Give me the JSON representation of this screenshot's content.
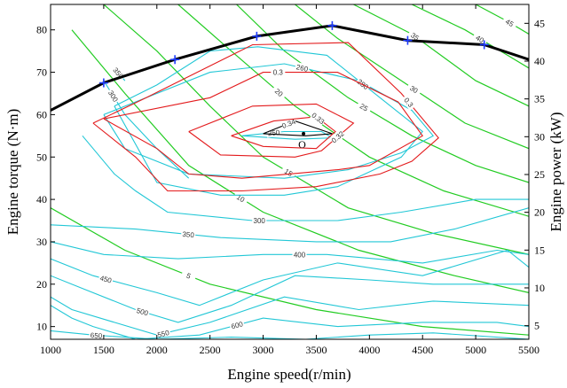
{
  "chart_data": {
    "type": "line",
    "title": "",
    "xlabel": "Engine speed(r/min)",
    "ylabel": "Engine torque (N·m)",
    "y2label": "Engine power (kW)",
    "xlim": [
      1000,
      5500
    ],
    "ylim": [
      7,
      86
    ],
    "y2lim": [
      3.2,
      47.5
    ],
    "grid": false,
    "legend": "none",
    "x_ticks": [
      "1000",
      "1500",
      "2000",
      "2500",
      "3000",
      "3500",
      "4000",
      "4500",
      "5000",
      "5500"
    ],
    "y_ticks": [
      "10",
      "20",
      "30",
      "40",
      "50",
      "60",
      "70",
      "80"
    ],
    "y2_ticks": [
      "5",
      "10",
      "15",
      "20",
      "25",
      "30",
      "35",
      "40",
      "45"
    ],
    "colors": {
      "max_torque": "#000000",
      "markers": "#1e3cff",
      "efficiency": "#e31a1c",
      "bsfc": "#22c7d6",
      "power": "#22cc22",
      "center": "#000000"
    },
    "max_torque_curve": {
      "x": [
        1000,
        1500,
        2170,
        2940,
        3650,
        4360,
        5080,
        5500
      ],
      "y": [
        61,
        67.5,
        73,
        78.5,
        81,
        77.5,
        76.5,
        73
      ]
    },
    "max_torque_markers": {
      "x": [
        1500,
        2170,
        2940,
        3650,
        4360,
        5080
      ],
      "y": [
        67.5,
        73,
        78.5,
        81,
        77.5,
        76.5
      ]
    },
    "optimal_point": {
      "label": "O",
      "x": 3380,
      "y": 55.5
    },
    "efficiency_contours": [
      {
        "level": "0.34",
        "x": [
          3000,
          3300,
          3650,
          3400,
          3000
        ],
        "y": [
          55.5,
          58.5,
          55.5,
          55,
          55.5
        ]
      },
      {
        "level": "0.33",
        "x": [
          2700,
          3100,
          3500,
          3680,
          3500,
          3000,
          2700
        ],
        "y": [
          55,
          58.5,
          59.5,
          56,
          52,
          52.5,
          55
        ]
      },
      {
        "level": "0.32",
        "x": [
          2300,
          2900,
          3500,
          3850,
          3550,
          3300,
          2600,
          2300
        ],
        "y": [
          56,
          62,
          62.5,
          58,
          51.5,
          50,
          50.5,
          56
        ]
      },
      {
        "level": "0.3",
        "x": [
          1500,
          2500,
          3000,
          3700,
          4270,
          4500,
          4000,
          3700,
          2800,
          2300,
          2000,
          1500
        ],
        "y": [
          59,
          64,
          70,
          70,
          63,
          55,
          48,
          47,
          45,
          46,
          52,
          59
        ]
      },
      {
        "level": "0.3",
        "x": [
          1400,
          1900,
          2900,
          3800,
          4300,
          4650,
          4400,
          4100,
          3500,
          2800,
          2100,
          1800,
          1400
        ],
        "y": [
          58,
          64,
          76.5,
          77,
          65,
          54.5,
          49,
          46,
          43,
          42,
          42,
          50,
          58
        ]
      }
    ],
    "bsfc_contours": [
      {
        "level": "250",
        "x": [
          2800,
          3200,
          3550,
          3650,
          3300,
          2800
        ],
        "y": [
          55,
          56,
          56,
          54.5,
          54.2,
          55
        ]
      },
      {
        "level": "260",
        "x": [
          1500,
          1900,
          2500,
          3200,
          3900,
          4400,
          4600,
          4300,
          3800,
          3200,
          2300,
          1700,
          1500
        ],
        "y": [
          60,
          64,
          70,
          72,
          68,
          61,
          55,
          51,
          47,
          45,
          46,
          52,
          60
        ]
      },
      {
        "level": "280",
        "x": [
          1600,
          2000,
          2500,
          2950,
          3600,
          4100,
          4500,
          4300,
          3700,
          3200,
          2600,
          2000,
          1600
        ],
        "y": [
          62,
          67,
          75,
          76,
          74,
          64,
          56,
          50,
          43,
          41,
          41,
          44,
          62
        ]
      },
      {
        "level": "300",
        "x": [
          1300,
          1600,
          1800,
          2100,
          2900,
          3700,
          4300,
          5000,
          5500
        ],
        "y": [
          55,
          46,
          42,
          37,
          35,
          35,
          37,
          40,
          40
        ]
      },
      {
        "level": "300",
        "x": [
          1500,
          1700,
          2000,
          2300
        ],
        "y": [
          68,
          60,
          52,
          45
        ]
      },
      {
        "level": "350",
        "x": [
          1000,
          1800,
          2600,
          3500,
          4200,
          4800,
          5500
        ],
        "y": [
          34,
          33,
          31,
          30,
          30,
          33,
          38
        ]
      },
      {
        "level": "350",
        "x": [
          1600,
          1700
        ],
        "y": [
          71,
          68
        ]
      },
      {
        "level": "400",
        "x": [
          1000,
          1500,
          2200,
          3000,
          3600,
          4500,
          5200,
          5500
        ],
        "y": [
          30,
          27,
          26,
          27,
          27,
          25,
          28,
          27
        ]
      },
      {
        "level": "450",
        "x": [
          1000,
          1400,
          2000,
          2400,
          3000,
          3700,
          4500,
          5300,
          5500
        ],
        "y": [
          26,
          22,
          18,
          15,
          21,
          25,
          22,
          28,
          24
        ]
      },
      {
        "level": "500",
        "x": [
          1000,
          1300,
          1800,
          2200,
          2700,
          3300,
          4000,
          4600,
          5500
        ],
        "y": [
          22,
          19,
          14,
          11,
          15,
          22,
          21,
          20,
          20
        ]
      },
      {
        "level": "550",
        "x": [
          1000,
          1200,
          1600,
          2000,
          2500,
          3200,
          3900,
          4600,
          5500
        ],
        "y": [
          17,
          14,
          11,
          8,
          11,
          17,
          14,
          16,
          15
        ]
      },
      {
        "level": "600",
        "x": [
          1000,
          1200,
          1400,
          1800,
          2400,
          3000,
          3700,
          4500,
          5200,
          5500
        ],
        "y": [
          15,
          12,
          10,
          7,
          8,
          12,
          10,
          11,
          11,
          10
        ]
      },
      {
        "level": "650",
        "x": [
          1000,
          1400,
          2000,
          2700,
          3400,
          4000,
          4600,
          5500
        ],
        "y": [
          9,
          8,
          7,
          7.5,
          7,
          8,
          8.5,
          7
        ]
      }
    ],
    "power_curves": [
      {
        "level": "5",
        "x": [
          1000,
          1700,
          2500,
          3500,
          4500,
          5500
        ],
        "y": [
          38,
          28,
          20,
          14,
          10,
          8
        ]
      },
      {
        "level": "10",
        "x": [
          1200,
          1700,
          2300,
          3000,
          3900,
          4800,
          5500
        ],
        "y": [
          80,
          65,
          48,
          37,
          28,
          22,
          18
        ]
      },
      {
        "level": "15",
        "x": [
          1500,
          2000,
          2500,
          3000,
          3800,
          4600,
          5500
        ],
        "y": [
          86,
          75,
          62,
          50,
          38,
          32,
          27
        ]
      },
      {
        "level": "20",
        "x": [
          2200,
          2700,
          3300,
          4000,
          4700,
          5500
        ],
        "y": [
          86,
          75,
          62,
          50,
          42,
          36
        ]
      },
      {
        "level": "25",
        "x": [
          2750,
          3200,
          3800,
          4400,
          5000,
          5500
        ],
        "y": [
          86,
          75,
          64,
          55,
          48,
          44
        ]
      },
      {
        "level": "30",
        "x": [
          3300,
          3700,
          4300,
          4900,
          5500
        ],
        "y": [
          86,
          78,
          68,
          58,
          52
        ]
      },
      {
        "level": "35",
        "x": [
          3850,
          4400,
          5000,
          5500
        ],
        "y": [
          86,
          79,
          68,
          62
        ]
      },
      {
        "level": "40",
        "x": [
          4400,
          4900,
          5300,
          5500
        ],
        "y": [
          86,
          80,
          74,
          71
        ]
      },
      {
        "level": "45",
        "x": [
          5000,
          5300,
          5500
        ],
        "y": [
          86,
          82,
          79
        ]
      }
    ]
  }
}
